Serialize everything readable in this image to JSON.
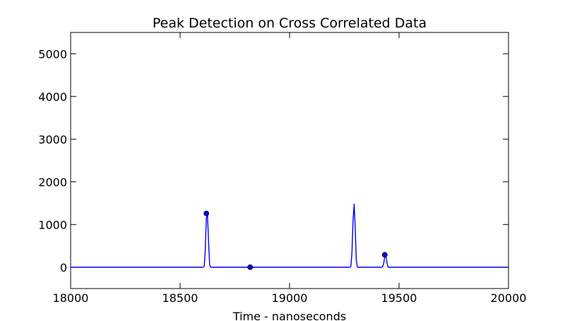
{
  "chart_data": {
    "type": "line",
    "title": "Peak Detection on Cross Correlated Data",
    "xlabel": "Time - nanoseconds",
    "ylabel": "",
    "xlim": [
      18000,
      20000
    ],
    "ylim": [
      -500,
      5500
    ],
    "xticks": [
      18000,
      18500,
      19000,
      19500,
      20000
    ],
    "yticks": [
      0,
      1000,
      2000,
      3000,
      4000,
      5000
    ],
    "grid": false,
    "line_color": "#0000ff",
    "marker_color": "#0000ff",
    "series": [
      {
        "type": "line",
        "x": [
          18000,
          18605,
          18610,
          18615,
          18620,
          18625,
          18630,
          18635,
          18640,
          19275,
          19280,
          19285,
          19290,
          19295,
          19300,
          19305,
          19310,
          19420,
          19425,
          19430,
          19435,
          19440,
          19445,
          19450,
          20000
        ],
        "y": [
          0,
          0,
          20,
          400,
          1150,
          1250,
          600,
          60,
          0,
          0,
          20,
          350,
          1100,
          1480,
          900,
          150,
          0,
          0,
          10,
          90,
          250,
          280,
          100,
          0,
          0
        ]
      },
      {
        "type": "scatter",
        "x": [
          18620,
          18820,
          19435
        ],
        "y": [
          1260,
          0,
          290
        ]
      }
    ]
  }
}
